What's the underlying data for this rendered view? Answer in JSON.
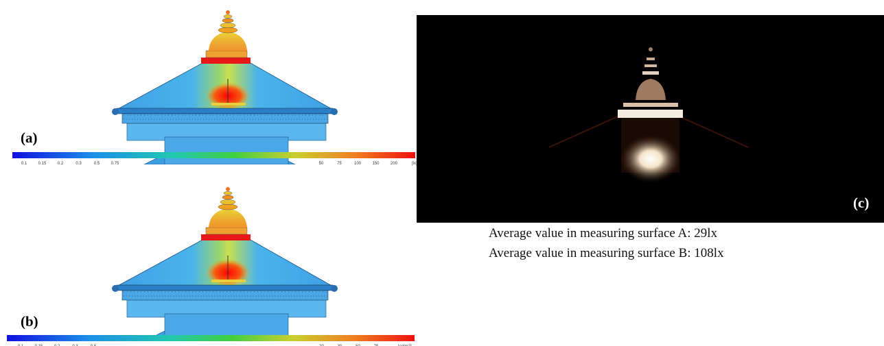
{
  "panel_a": {
    "label": "(a)",
    "scale": {
      "left_ticks": [
        "0.1",
        "0.15",
        "0.2",
        "0.3",
        "0.5",
        "0.75"
      ],
      "right_ticks": [
        "50",
        "75",
        "100",
        "150",
        "200"
      ],
      "unit": "[lx]"
    }
  },
  "panel_b": {
    "label": "(b)",
    "scale": {
      "left_ticks": [
        "0.1",
        "0.15",
        "0.2",
        "0.3",
        "0.5"
      ],
      "right_ticks": [
        "20",
        "30",
        "50",
        "75"
      ],
      "unit": "[cd/m2]"
    }
  },
  "panel_c": {
    "label": "(c)"
  },
  "results": [
    "Average value in measuring surface A: 29lx",
    "Average value in measuring surface B: 108lx"
  ]
}
